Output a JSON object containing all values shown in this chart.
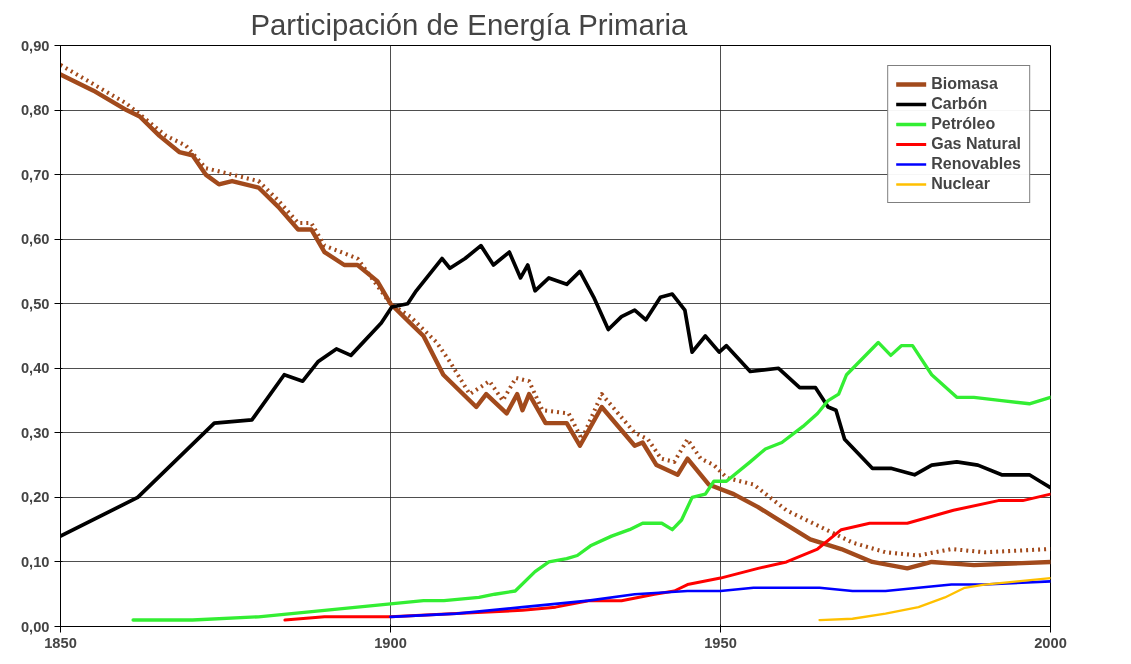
{
  "chart_data": {
    "type": "line",
    "title": "Participación de Energía Primaria",
    "xlim": [
      1850,
      2000
    ],
    "xticks": [
      1850,
      1900,
      1950,
      2000
    ],
    "ylim": [
      0,
      0.9
    ],
    "yticks": [
      {
        "value": 0,
        "label": "0,00"
      },
      {
        "value": 0.1,
        "label": "0,10"
      },
      {
        "value": 0.2,
        "label": "0,20"
      },
      {
        "value": 0.3,
        "label": "0,30"
      },
      {
        "value": 0.4,
        "label": "0,40"
      },
      {
        "value": 0.5,
        "label": "0,50"
      },
      {
        "value": 0.6,
        "label": "0,60"
      },
      {
        "value": 0.7,
        "label": "0,70"
      },
      {
        "value": 0.8,
        "label": "0,80"
      },
      {
        "value": 0.9,
        "label": "0,90"
      }
    ],
    "grid": true,
    "legend": "top right",
    "series": [
      {
        "name": "Biomasa",
        "color": "#a24a1c",
        "line_style": "solid",
        "x": [
          1850,
          1855,
          1860,
          1862,
          1865,
          1868,
          1870,
          1872,
          1874,
          1876,
          1880,
          1883,
          1886,
          1888,
          1890,
          1893,
          1895,
          1898,
          1900,
          1903,
          1905,
          1908,
          1913,
          1914.5,
          1917.6,
          1919.2,
          1920,
          1921,
          1923.5,
          1926.7,
          1928.7,
          1932,
          1937,
          1938.2,
          1940.3,
          1943.5,
          1945,
          1948.2,
          1952,
          1955.7,
          1958.8,
          1963.6,
          1968.3,
          1973,
          1978.3,
          1982,
          1988.4,
          2000
        ],
        "values": [
          0.855,
          0.83,
          0.8,
          0.79,
          0.76,
          0.735,
          0.73,
          0.7,
          0.685,
          0.69,
          0.68,
          0.65,
          0.615,
          0.615,
          0.58,
          0.56,
          0.56,
          0.535,
          0.5,
          0.47,
          0.45,
          0.39,
          0.34,
          0.36,
          0.33,
          0.36,
          0.335,
          0.36,
          0.315,
          0.315,
          0.28,
          0.34,
          0.28,
          0.285,
          0.25,
          0.235,
          0.26,
          0.22,
          0.205,
          0.185,
          0.165,
          0.135,
          0.12,
          0.1,
          0.09,
          0.1,
          0.095,
          0.1
        ]
      },
      {
        "color": "#a24a1c",
        "line_style": "dotted",
        "x": [
          1850,
          1860,
          1866,
          1869,
          1872,
          1880,
          1883,
          1886,
          1888,
          1890,
          1895,
          1900,
          1903,
          1907,
          1909,
          1912,
          1915,
          1917,
          1919,
          1921,
          1923,
          1927,
          1929,
          1932,
          1937,
          1939,
          1941,
          1943,
          1945,
          1947,
          1949,
          1951,
          1955,
          1960,
          1965,
          1970,
          1975,
          1980,
          1985,
          1990,
          2000
        ],
        "values": [
          0.87,
          0.81,
          0.76,
          0.745,
          0.71,
          0.69,
          0.66,
          0.625,
          0.625,
          0.59,
          0.57,
          0.5,
          0.48,
          0.44,
          0.41,
          0.36,
          0.38,
          0.35,
          0.385,
          0.38,
          0.335,
          0.33,
          0.29,
          0.36,
          0.3,
          0.29,
          0.26,
          0.255,
          0.29,
          0.26,
          0.25,
          0.23,
          0.22,
          0.18,
          0.155,
          0.13,
          0.115,
          0.11,
          0.12,
          0.115,
          0.12
        ]
      },
      {
        "name": "Carbón",
        "color": "#000000",
        "line_style": "solid",
        "x": [
          1850,
          1861.7,
          1873.3,
          1879,
          1883.9,
          1886.7,
          1889,
          1891.8,
          1894,
          1898.6,
          1900.2,
          1902.6,
          1903.9,
          1907.8,
          1909,
          1911.3,
          1913.7,
          1915.6,
          1918,
          1919.7,
          1920.8,
          1921.9,
          1924,
          1926.7,
          1928.7,
          1930.8,
          1933,
          1935,
          1937,
          1938.7,
          1940.9,
          1942.7,
          1944.6,
          1945.7,
          1947.7,
          1949.8,
          1950.9,
          1954.5,
          1958.8,
          1962,
          1964.4,
          1966.3,
          1967.5,
          1968.8,
          1973,
          1975.8,
          1979.4,
          1982,
          1985.8,
          1989,
          1992.6,
          1996.8,
          1998.4,
          2000
        ],
        "values": [
          0.14,
          0.2,
          0.315,
          0.32,
          0.39,
          0.38,
          0.41,
          0.43,
          0.42,
          0.47,
          0.495,
          0.5,
          0.52,
          0.57,
          0.555,
          0.57,
          0.59,
          0.56,
          0.58,
          0.54,
          0.56,
          0.52,
          0.54,
          0.53,
          0.55,
          0.51,
          0.46,
          0.48,
          0.49,
          0.475,
          0.51,
          0.515,
          0.49,
          0.425,
          0.45,
          0.425,
          0.435,
          0.395,
          0.4,
          0.37,
          0.37,
          0.34,
          0.335,
          0.29,
          0.245,
          0.245,
          0.235,
          0.25,
          0.255,
          0.25,
          0.235,
          0.235,
          0.225,
          0.215
        ]
      },
      {
        "name": "Petróleo",
        "color": "#33ee33",
        "line_style": "solid",
        "x": [
          1861,
          1870,
          1880,
          1885,
          1890,
          1895,
          1900,
          1905,
          1908.1,
          1913.4,
          1915.8,
          1918.9,
          1921.9,
          1924,
          1926.7,
          1928.3,
          1930.3,
          1933.5,
          1936.2,
          1938.2,
          1941.1,
          1942.7,
          1944.1,
          1945.7,
          1947.7,
          1949,
          1950.9,
          1954.5,
          1956.8,
          1959.3,
          1962.5,
          1964.7,
          1966.3,
          1967.9,
          1969.1,
          1973.9,
          1975.8,
          1977.4,
          1979.1,
          1982,
          1985.8,
          1988.4,
          1992.6,
          1996.8,
          2000
        ],
        "values": [
          0.01,
          0.01,
          0.015,
          0.02,
          0.025,
          0.03,
          0.035,
          0.04,
          0.04,
          0.045,
          0.05,
          0.055,
          0.085,
          0.1,
          0.105,
          0.11,
          0.125,
          0.14,
          0.15,
          0.16,
          0.16,
          0.15,
          0.165,
          0.2,
          0.205,
          0.225,
          0.225,
          0.255,
          0.275,
          0.285,
          0.31,
          0.33,
          0.35,
          0.36,
          0.39,
          0.44,
          0.42,
          0.435,
          0.435,
          0.39,
          0.355,
          0.355,
          0.35,
          0.345,
          0.355
        ]
      },
      {
        "name": "Gas Natural",
        "color": "#ff0000",
        "line_style": "solid",
        "x": [
          1884,
          1890,
          1900,
          1910,
          1920,
          1925,
          1930,
          1935,
          1940,
          1943,
          1945,
          1950,
          1955.7,
          1960,
          1964.7,
          1968.3,
          1972.6,
          1978.3,
          1985.3,
          1992.1,
          1995.8,
          2000
        ],
        "values": [
          0.01,
          0.015,
          0.015,
          0.02,
          0.025,
          0.03,
          0.04,
          0.04,
          0.05,
          0.055,
          0.065,
          0.075,
          0.09,
          0.1,
          0.12,
          0.15,
          0.16,
          0.16,
          0.18,
          0.195,
          0.195,
          0.205
        ]
      },
      {
        "name": "Renovables",
        "color": "#0000ff",
        "line_style": "solid",
        "x": [
          1900,
          1910,
          1920,
          1930,
          1937,
          1945,
          1950,
          1955,
          1965,
          1970,
          1975,
          1980,
          1985,
          1990,
          2000
        ],
        "values": [
          0.015,
          0.02,
          0.03,
          0.04,
          0.05,
          0.055,
          0.055,
          0.06,
          0.06,
          0.055,
          0.055,
          0.06,
          0.065,
          0.065,
          0.07
        ]
      },
      {
        "name": "Nuclear",
        "color": "#ffc000",
        "line_style": "solid",
        "x": [
          1965,
          1970,
          1975,
          1980,
          1984,
          1987,
          1990,
          1995,
          2000
        ],
        "values": [
          0.01,
          0.012,
          0.02,
          0.03,
          0.045,
          0.06,
          0.065,
          0.07,
          0.075
        ]
      }
    ]
  }
}
